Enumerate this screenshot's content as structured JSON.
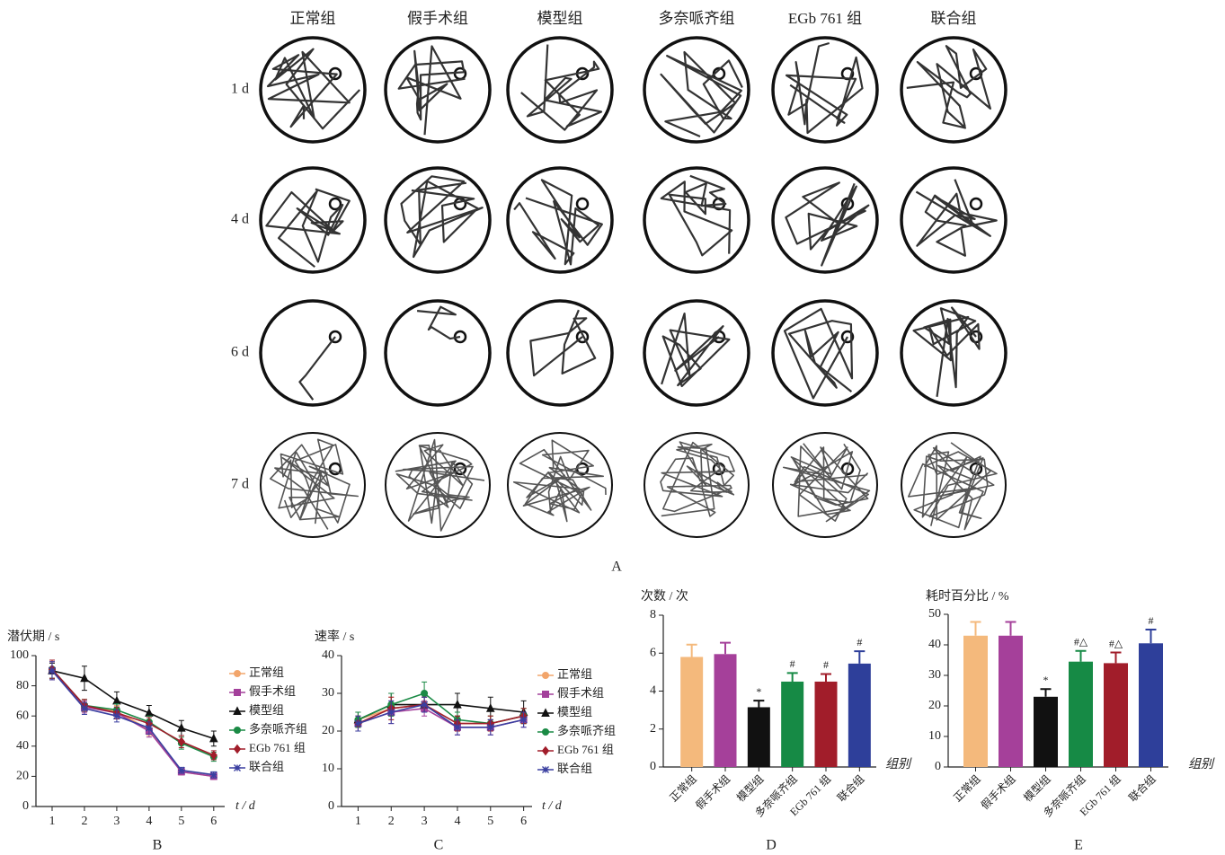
{
  "panel_a": {
    "label": "A",
    "columns": [
      "正常组",
      "假手术组",
      "模型组",
      "多奈哌齐组",
      "EGb 761 组",
      "联合组"
    ],
    "rows": [
      "1 d",
      "4 d",
      "6 d",
      "7 d"
    ]
  },
  "chart_data": [
    {
      "type": "line",
      "panel": "B",
      "ylabel": "潜伏期 / s",
      "xlabel": "t / d",
      "x": [
        1,
        2,
        3,
        4,
        5,
        6
      ],
      "xlim": [
        0.5,
        6.2
      ],
      "xticks": [
        1,
        2,
        3,
        4,
        5,
        6
      ],
      "ylim": [
        0,
        100
      ],
      "yticks": [
        0,
        20,
        40,
        60,
        80,
        100
      ],
      "legend": "right",
      "series": [
        {
          "name": "正常组",
          "color": "#f2a56b",
          "marker": "circle",
          "values": [
            90,
            67,
            63,
            51,
            23,
            20
          ],
          "errors": [
            6,
            4,
            4,
            4,
            2,
            2
          ]
        },
        {
          "name": "假手术组",
          "color": "#a3409b",
          "marker": "square",
          "values": [
            90,
            66,
            62,
            50,
            23,
            20
          ],
          "errors": [
            6,
            4,
            4,
            4,
            2,
            2
          ]
        },
        {
          "name": "模型组",
          "color": "#111111",
          "marker": "triangle",
          "values": [
            90,
            85,
            70,
            62,
            52,
            45
          ],
          "errors": [
            5,
            8,
            6,
            5,
            5,
            5
          ]
        },
        {
          "name": "多奈哌齐组",
          "color": "#1a8a45",
          "marker": "circle",
          "values": [
            91,
            67,
            64,
            56,
            42,
            33
          ],
          "errors": [
            6,
            4,
            4,
            4,
            4,
            3
          ]
        },
        {
          "name": "EGb 761 组",
          "color": "#a11d2a",
          "marker": "diamond",
          "values": [
            91,
            67,
            62,
            55,
            43,
            34
          ],
          "errors": [
            6,
            4,
            4,
            4,
            4,
            3
          ]
        },
        {
          "name": "联合组",
          "color": "#3a3fa0",
          "marker": "star",
          "values": [
            90,
            65,
            60,
            52,
            24,
            21
          ],
          "errors": [
            6,
            4,
            4,
            4,
            2,
            2
          ]
        }
      ]
    },
    {
      "type": "line",
      "panel": "C",
      "ylabel": "速率 / s",
      "xlabel": "t / d",
      "x": [
        1,
        2,
        3,
        4,
        5,
        6
      ],
      "xlim": [
        0.5,
        6.2
      ],
      "xticks": [
        1,
        2,
        3,
        4,
        5,
        6
      ],
      "ylim": [
        0,
        40
      ],
      "yticks": [
        0,
        10,
        20,
        30,
        40
      ],
      "legend": "right",
      "series": [
        {
          "name": "正常组",
          "color": "#f2a56b",
          "marker": "circle",
          "values": [
            23,
            26,
            27,
            22,
            22,
            24
          ],
          "errors": [
            2,
            3,
            2,
            2,
            2,
            2
          ]
        },
        {
          "name": "假手术组",
          "color": "#a3409b",
          "marker": "square",
          "values": [
            22,
            25,
            26,
            21,
            21,
            23
          ],
          "errors": [
            2,
            3,
            2,
            2,
            2,
            2
          ]
        },
        {
          "name": "模型组",
          "color": "#111111",
          "marker": "triangle",
          "values": [
            23,
            27,
            27,
            27,
            26,
            25
          ],
          "errors": [
            2,
            3,
            2,
            3,
            3,
            3
          ]
        },
        {
          "name": "多奈哌齐组",
          "color": "#1a8a45",
          "marker": "circle",
          "values": [
            23,
            27,
            30,
            23,
            22,
            24
          ],
          "errors": [
            2,
            3,
            3,
            2,
            2,
            2
          ]
        },
        {
          "name": "EGb 761 组",
          "color": "#a11d2a",
          "marker": "diamond",
          "values": [
            22,
            26,
            27,
            22,
            22,
            24
          ],
          "errors": [
            2,
            3,
            2,
            2,
            2,
            2
          ]
        },
        {
          "name": "联合组",
          "color": "#3a3fa0",
          "marker": "star",
          "values": [
            22,
            25,
            27,
            21,
            21,
            23
          ],
          "errors": [
            2,
            3,
            2,
            2,
            2,
            2
          ]
        }
      ]
    },
    {
      "type": "bar",
      "panel": "D",
      "ylabel": "次数 / 次",
      "xlabel": "组别",
      "categories": [
        "正常组",
        "假手术组",
        "模型组",
        "多奈哌齐组",
        "EGb 761 组",
        "联合组"
      ],
      "values": [
        5.8,
        5.95,
        3.15,
        4.5,
        4.5,
        5.45
      ],
      "errors": [
        0.65,
        0.6,
        0.35,
        0.45,
        0.4,
        0.65
      ],
      "annotations": [
        null,
        null,
        "*",
        "#",
        "#",
        "#"
      ],
      "colors": [
        "#f4b97c",
        "#a5409a",
        "#111111",
        "#168a45",
        "#a11d2a",
        "#2e3f9a"
      ],
      "ylim": [
        0,
        8
      ],
      "yticks": [
        0,
        2,
        4,
        6,
        8
      ]
    },
    {
      "type": "bar",
      "panel": "E",
      "ylabel": "耗时百分比 / %",
      "xlabel": "组别",
      "categories": [
        "正常组",
        "假手术组",
        "模型组",
        "多奈哌齐组",
        "EGb 761 组",
        "联合组"
      ],
      "values": [
        43,
        43,
        23,
        34.5,
        34,
        40.5
      ],
      "errors": [
        4.5,
        4.5,
        2.5,
        3.5,
        3.5,
        4.5
      ],
      "annotations": [
        null,
        null,
        "*",
        "#△",
        "#△",
        "#"
      ],
      "colors": [
        "#f4b97c",
        "#a5409a",
        "#111111",
        "#168a45",
        "#a11d2a",
        "#2e3f9a"
      ],
      "ylim": [
        0,
        50
      ],
      "yticks": [
        0,
        10,
        20,
        30,
        40,
        50
      ]
    }
  ]
}
